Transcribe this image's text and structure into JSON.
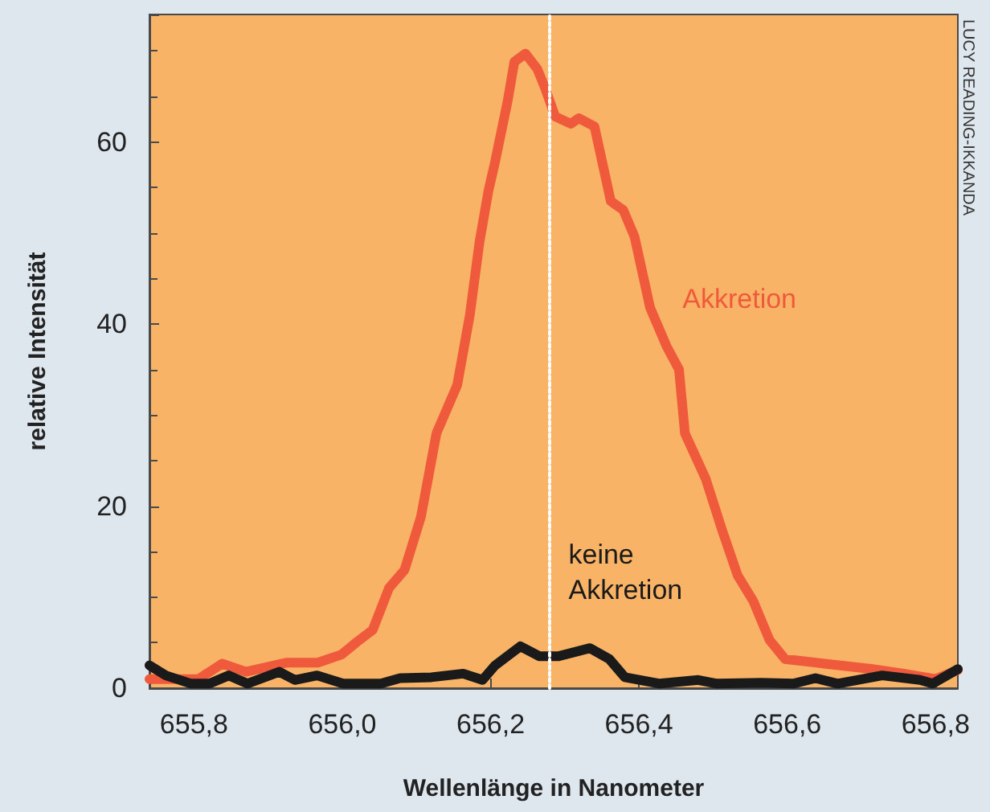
{
  "chart_data": {
    "type": "line",
    "xlabel": "Wellenlänge in Nanometer",
    "ylabel": "relative Intensität",
    "xlim": [
      655.74,
      656.83
    ],
    "ylim": [
      0,
      74
    ],
    "xticks": [
      {
        "value": 655.8,
        "label": "655,8"
      },
      {
        "value": 656.0,
        "label": "656,0"
      },
      {
        "value": 656.2,
        "label": "656,2"
      },
      {
        "value": 656.4,
        "label": "656,4"
      },
      {
        "value": 656.6,
        "label": "656,6"
      },
      {
        "value": 656.8,
        "label": "656,8"
      }
    ],
    "yticks": [
      0,
      20,
      40,
      60
    ],
    "grid": false,
    "legend": false,
    "marker": "none",
    "line_style": "solid",
    "series": [
      {
        "name": "Akkretion",
        "color": "#f05a3c",
        "x": [
          655.74,
          655.806,
          655.838,
          655.87,
          655.924,
          655.967,
          655.999,
          656.02,
          656.041,
          656.063,
          656.084,
          656.106,
          656.127,
          656.155,
          656.172,
          656.185,
          656.197,
          656.206,
          656.223,
          656.232,
          656.247,
          656.263,
          656.273,
          656.287,
          656.308,
          656.319,
          656.34,
          656.362,
          656.379,
          656.394,
          656.415,
          656.437,
          656.454,
          656.462,
          656.49,
          656.512,
          656.533,
          656.554,
          656.576,
          656.597,
          656.65,
          656.715,
          656.757,
          656.8,
          656.83
        ],
        "values": [
          1,
          1,
          2.7,
          1.8,
          2.8,
          2.8,
          3.7,
          5.1,
          6.4,
          11,
          13,
          18.8,
          28,
          33.3,
          41,
          49,
          54.6,
          57.8,
          64.5,
          68.8,
          69.7,
          68,
          66,
          62.8,
          62,
          62.6,
          61.7,
          53.5,
          52.5,
          49.6,
          41.8,
          37.6,
          35,
          28,
          23,
          17.4,
          12.4,
          9.6,
          5.3,
          3.2,
          2.7,
          2.1,
          1.6,
          1,
          2
        ]
      },
      {
        "name": "keine Akkretion",
        "color": "#1a1a1a",
        "x": [
          655.74,
          655.762,
          655.796,
          655.821,
          655.847,
          655.872,
          655.915,
          655.936,
          655.966,
          656.001,
          656.052,
          656.078,
          656.12,
          656.163,
          656.189,
          656.206,
          656.24,
          656.266,
          656.291,
          656.334,
          656.36,
          656.381,
          656.428,
          656.48,
          656.505,
          656.565,
          656.608,
          656.638,
          656.668,
          656.728,
          656.779,
          656.796,
          656.83
        ],
        "values": [
          2.5,
          1.4,
          0.5,
          0.5,
          1.4,
          0.5,
          1.8,
          0.9,
          1.4,
          0.5,
          0.5,
          1.1,
          1.2,
          1.6,
          0.9,
          2.5,
          4.6,
          3.5,
          3.5,
          4.4,
          3.2,
          1.2,
          0.5,
          0.9,
          0.5,
          0.6,
          0.5,
          1.1,
          0.5,
          1.4,
          0.9,
          0.5,
          2.1
        ]
      }
    ],
    "ref_lines": [
      {
        "axis": "x",
        "value": 656.28,
        "color": "#ffffff",
        "line_style": "dotted"
      }
    ],
    "annotations": [
      "LUCY READING-IKKANDA"
    ]
  }
}
